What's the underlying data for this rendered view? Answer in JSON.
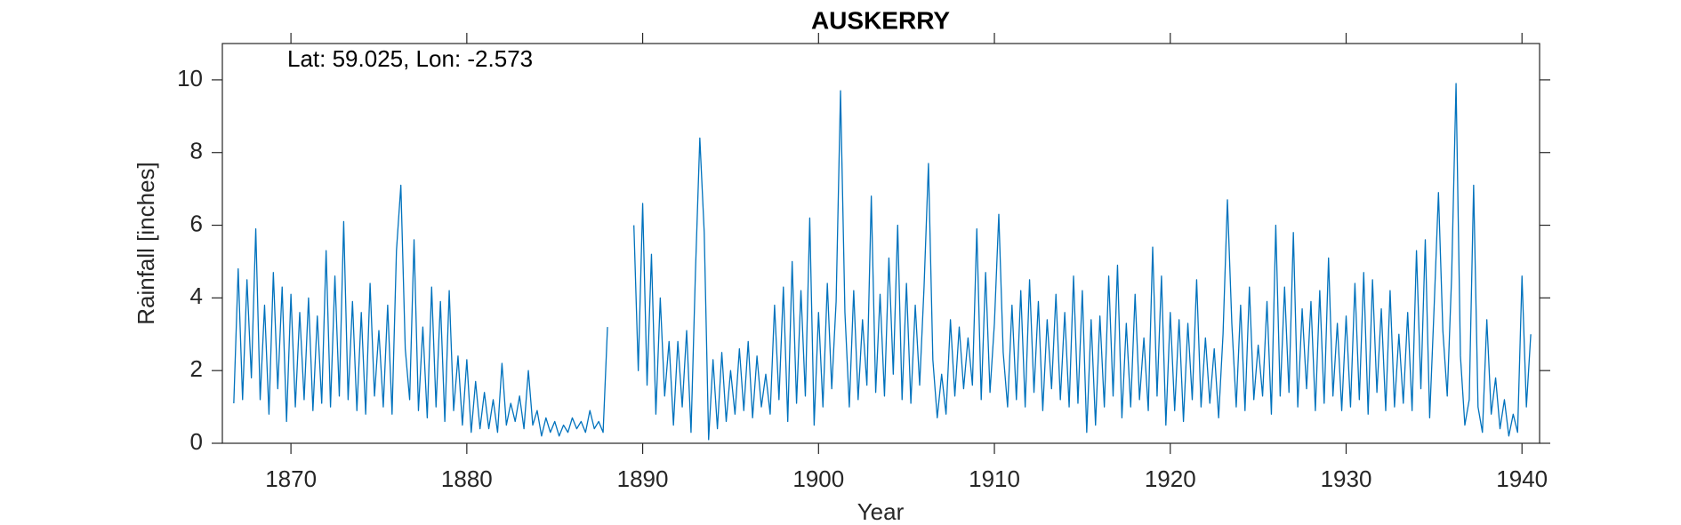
{
  "chart_data": {
    "type": "line",
    "title": "AUSKERRY",
    "x_label": "Year",
    "y_label": "Rainfall [inches]",
    "annotation": "Lat: 59.025, Lon: -2.573",
    "color": "#0072bd",
    "xlim": [
      1866.1,
      1941
    ],
    "ylim": [
      0,
      11
    ],
    "xticks": [
      1870,
      1880,
      1890,
      1900,
      1910,
      1920,
      1930,
      1940
    ],
    "yticks": [
      0,
      2,
      4,
      6,
      8,
      10
    ],
    "grid": false,
    "x": [
      1866.75,
      1867,
      1867.25,
      1867.5,
      1867.75,
      1868,
      1868.25,
      1868.5,
      1868.75,
      1869,
      1869.25,
      1869.5,
      1869.75,
      1870,
      1870.25,
      1870.5,
      1870.75,
      1871,
      1871.25,
      1871.5,
      1871.75,
      1872,
      1872.25,
      1872.5,
      1872.75,
      1873,
      1873.25,
      1873.5,
      1873.75,
      1874,
      1874.25,
      1874.5,
      1874.75,
      1875,
      1875.25,
      1875.5,
      1875.75,
      1876,
      1876.25,
      1876.5,
      1876.75,
      1877,
      1877.25,
      1877.5,
      1877.75,
      1878,
      1878.25,
      1878.5,
      1878.75,
      1879,
      1879.25,
      1879.5,
      1879.75,
      1880,
      1880.25,
      1880.5,
      1880.75,
      1881,
      1881.25,
      1881.5,
      1881.75,
      1882,
      1882.25,
      1882.5,
      1882.75,
      1883,
      1883.25,
      1883.5,
      1883.75,
      1884,
      1884.25,
      1884.5,
      1884.75,
      1885,
      1885.25,
      1885.5,
      1885.75,
      1886,
      1886.25,
      1886.5,
      1886.75,
      1887,
      1887.25,
      1887.5,
      1887.75,
      1888,
      1888.25,
      1888.5,
      1888.75,
      1889,
      1889.25,
      1889.5,
      1889.75,
      1890,
      1890.25,
      1890.5,
      1890.75,
      1891,
      1891.25,
      1891.5,
      1891.75,
      1892,
      1892.25,
      1892.5,
      1892.75,
      1893,
      1893.25,
      1893.5,
      1893.75,
      1894,
      1894.25,
      1894.5,
      1894.75,
      1895,
      1895.25,
      1895.5,
      1895.75,
      1896,
      1896.25,
      1896.5,
      1896.75,
      1897,
      1897.25,
      1897.5,
      1897.75,
      1898,
      1898.25,
      1898.5,
      1898.75,
      1899,
      1899.25,
      1899.5,
      1899.75,
      1900,
      1900.25,
      1900.5,
      1900.75,
      1901,
      1901.25,
      1901.5,
      1901.75,
      1902,
      1902.25,
      1902.5,
      1902.75,
      1903,
      1903.25,
      1903.5,
      1903.75,
      1904,
      1904.25,
      1904.5,
      1904.75,
      1905,
      1905.25,
      1905.5,
      1905.75,
      1906,
      1906.25,
      1906.5,
      1906.75,
      1907,
      1907.25,
      1907.5,
      1907.75,
      1908,
      1908.25,
      1908.5,
      1908.75,
      1909,
      1909.25,
      1909.5,
      1909.75,
      1910,
      1910.25,
      1910.5,
      1910.75,
      1911,
      1911.25,
      1911.5,
      1911.75,
      1912,
      1912.25,
      1912.5,
      1912.75,
      1913,
      1913.25,
      1913.5,
      1913.75,
      1914,
      1914.25,
      1914.5,
      1914.75,
      1915,
      1915.25,
      1915.5,
      1915.75,
      1916,
      1916.25,
      1916.5,
      1916.75,
      1917,
      1917.25,
      1917.5,
      1917.75,
      1918,
      1918.25,
      1918.5,
      1918.75,
      1919,
      1919.25,
      1919.5,
      1919.75,
      1920,
      1920.25,
      1920.5,
      1920.75,
      1921,
      1921.25,
      1921.5,
      1921.75,
      1922,
      1922.25,
      1922.5,
      1922.75,
      1923,
      1923.25,
      1923.5,
      1923.75,
      1924,
      1924.25,
      1924.5,
      1924.75,
      1925,
      1925.25,
      1925.5,
      1925.75,
      1926,
      1926.25,
      1926.5,
      1926.75,
      1927,
      1927.25,
      1927.5,
      1927.75,
      1928,
      1928.25,
      1928.5,
      1928.75,
      1929,
      1929.25,
      1929.5,
      1929.75,
      1930,
      1930.25,
      1930.5,
      1930.75,
      1931,
      1931.25,
      1931.5,
      1931.75,
      1932,
      1932.25,
      1932.5,
      1932.75,
      1933,
      1933.25,
      1933.5,
      1933.75,
      1934,
      1934.25,
      1934.5,
      1934.75,
      1935,
      1935.25,
      1935.5,
      1935.75,
      1936,
      1936.25,
      1936.5,
      1936.75,
      1937,
      1937.25,
      1937.5,
      1937.75,
      1938,
      1938.25,
      1938.5,
      1938.75,
      1939,
      1939.25,
      1939.5,
      1939.75,
      1940,
      1940.25,
      1940.5
    ],
    "values": [
      1.1,
      4.8,
      1.2,
      4.5,
      1.8,
      5.9,
      1.2,
      3.8,
      0.8,
      4.7,
      1.5,
      4.3,
      0.6,
      4.1,
      1.0,
      3.6,
      1.2,
      4.0,
      0.9,
      3.5,
      1.1,
      5.3,
      1.0,
      4.6,
      1.3,
      6.1,
      1.2,
      3.9,
      0.9,
      3.6,
      0.8,
      4.4,
      1.3,
      3.1,
      1.0,
      3.8,
      0.8,
      5.3,
      7.1,
      2.6,
      1.2,
      5.6,
      0.9,
      3.2,
      0.7,
      4.3,
      1.0,
      3.9,
      0.6,
      4.2,
      0.9,
      2.4,
      0.5,
      2.3,
      0.3,
      1.7,
      0.4,
      1.4,
      0.4,
      1.2,
      0.3,
      2.2,
      0.5,
      1.1,
      0.6,
      1.3,
      0.4,
      2.0,
      0.5,
      0.9,
      0.2,
      0.7,
      0.3,
      0.6,
      0.2,
      0.5,
      0.3,
      0.7,
      0.4,
      0.6,
      0.3,
      0.9,
      0.4,
      0.6,
      0.3,
      3.2,
      null,
      null,
      null,
      null,
      null,
      6.0,
      2.0,
      6.6,
      1.6,
      5.2,
      0.8,
      4.0,
      1.3,
      2.8,
      0.5,
      2.8,
      1.0,
      3.1,
      0.3,
      4.7,
      8.4,
      5.8,
      0.1,
      2.3,
      0.4,
      2.5,
      0.6,
      2.0,
      0.8,
      2.6,
      0.9,
      2.8,
      0.7,
      2.4,
      1.0,
      1.9,
      0.8,
      3.8,
      1.2,
      4.3,
      0.6,
      5.0,
      1.1,
      4.2,
      1.3,
      6.2,
      0.5,
      3.6,
      1.0,
      4.4,
      1.5,
      3.9,
      9.7,
      3.6,
      1.0,
      4.2,
      1.2,
      3.4,
      1.6,
      6.8,
      1.4,
      4.1,
      1.3,
      5.1,
      1.9,
      6.0,
      1.2,
      4.4,
      1.1,
      3.8,
      1.6,
      4.3,
      7.7,
      2.3,
      0.7,
      1.9,
      0.8,
      3.4,
      1.3,
      3.2,
      1.5,
      2.9,
      1.6,
      5.9,
      1.2,
      4.7,
      1.4,
      3.3,
      6.3,
      2.5,
      1.0,
      3.8,
      1.2,
      4.2,
      1.0,
      4.5,
      1.4,
      3.9,
      0.9,
      3.4,
      1.5,
      4.1,
      1.2,
      3.6,
      1.0,
      4.6,
      1.1,
      4.2,
      0.3,
      3.4,
      0.5,
      3.5,
      1.0,
      4.6,
      1.3,
      4.9,
      0.7,
      3.3,
      1.0,
      4.1,
      1.2,
      2.9,
      0.9,
      5.4,
      1.3,
      4.6,
      0.5,
      3.6,
      0.9,
      3.4,
      0.6,
      3.3,
      1.2,
      4.5,
      1.0,
      2.9,
      1.1,
      2.6,
      0.7,
      3.0,
      6.7,
      3.3,
      1.0,
      3.8,
      0.9,
      4.3,
      1.2,
      2.7,
      1.3,
      3.9,
      0.8,
      6.0,
      1.3,
      4.3,
      1.4,
      5.8,
      1.0,
      3.7,
      1.5,
      3.9,
      0.9,
      4.2,
      1.1,
      5.1,
      1.3,
      3.3,
      0.9,
      3.5,
      1.0,
      4.4,
      1.2,
      4.7,
      0.8,
      4.5,
      1.4,
      3.7,
      0.9,
      4.2,
      1.0,
      3.0,
      1.1,
      3.6,
      0.9,
      5.3,
      1.5,
      5.6,
      0.7,
      3.7,
      6.9,
      3.1,
      1.3,
      4.6,
      9.9,
      2.4,
      0.5,
      1.2,
      7.1,
      1.0,
      0.3,
      3.4,
      0.8,
      1.8,
      0.4,
      1.2,
      0.2,
      0.8,
      0.3,
      4.6,
      1.0,
      3.0
    ]
  }
}
